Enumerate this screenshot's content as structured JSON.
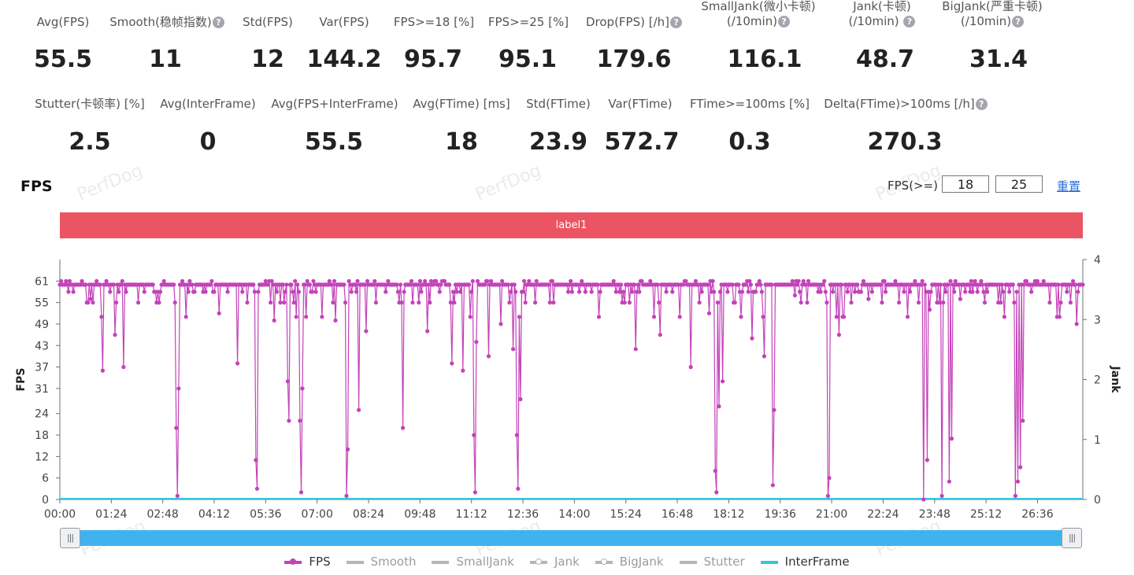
{
  "stats_row1": [
    {
      "label": "Avg(FPS)",
      "value": "55.5",
      "help": false
    },
    {
      "label": "Smooth(稳帧指数)",
      "value": "11",
      "help": true
    },
    {
      "label": "Std(FPS)",
      "value": "12",
      "help": false
    },
    {
      "label": "Var(FPS)",
      "value": "144.2",
      "help": false
    },
    {
      "label": "FPS>=18 [%]",
      "value": "95.7",
      "help": false
    },
    {
      "label": "FPS>=25 [%]",
      "value": "95.1",
      "help": false
    },
    {
      "label": "Drop(FPS) [/h]",
      "value": "179.6",
      "help": true
    },
    {
      "label": "SmallJank(微小卡顿)",
      "label2": "(/10min)",
      "value": "116.1",
      "help": true
    },
    {
      "label": "Jank(卡顿)",
      "label2": "(/10min)",
      "value": "48.7",
      "help": true
    },
    {
      "label": "BigJank(严重卡顿)",
      "label2": "(/10min)",
      "value": "31.4",
      "help": true
    }
  ],
  "stats_row2": [
    {
      "label": "Stutter(卡顿率) [%]",
      "value": "2.5",
      "help": false
    },
    {
      "label": "Avg(InterFrame)",
      "value": "0",
      "help": false
    },
    {
      "label": "Avg(FPS+InterFrame)",
      "value": "55.5",
      "help": false
    },
    {
      "label": "Avg(FTime) [ms]",
      "value": "18",
      "help": false
    },
    {
      "label": "Std(FTime)",
      "value": "23.9",
      "help": false
    },
    {
      "label": "Var(FTime)",
      "value": "572.7",
      "help": false
    },
    {
      "label": "FTime>=100ms [%]",
      "value": "0.3",
      "help": false
    },
    {
      "label": "Delta(FTime)>100ms [/h]",
      "value": "270.3",
      "help": true
    }
  ],
  "help_glyph": "?",
  "watermark": "PerfDog",
  "chart_section": {
    "title": "FPS",
    "filter_label": "FPS(>=)",
    "threshold_low": "18",
    "threshold_high": "25",
    "reset_label": "重置",
    "label_bar": "label1"
  },
  "slider": {
    "handle_glyph": "|||"
  },
  "colors": {
    "fps": "#c343b9",
    "inactive": "#b4b6bd",
    "interframe": "#35c6dd",
    "label_bar": "#eb5563",
    "slider": "#40b3ee"
  },
  "chart_data": {
    "type": "line",
    "xlabel": "",
    "ylabel": "FPS",
    "y2label": "Jank",
    "x_ticks": [
      "00:00",
      "01:24",
      "02:48",
      "04:12",
      "05:36",
      "07:00",
      "08:24",
      "09:48",
      "11:12",
      "12:36",
      "14:00",
      "15:24",
      "16:48",
      "18:12",
      "19:36",
      "21:00",
      "22:24",
      "23:48",
      "25:12",
      "26:36"
    ],
    "x_tick_seconds": [
      0,
      84,
      168,
      252,
      336,
      420,
      504,
      588,
      672,
      756,
      840,
      924,
      1008,
      1092,
      1176,
      1260,
      1344,
      1428,
      1512,
      1596
    ],
    "x_range_seconds": [
      0,
      1670
    ],
    "y_ticks": [
      0,
      6,
      12,
      18,
      24,
      31,
      37,
      43,
      49,
      55,
      61
    ],
    "ylim": [
      0,
      67
    ],
    "y2_ticks": [
      0,
      1,
      2,
      3,
      4
    ],
    "y2lim": [
      0,
      4
    ],
    "baseline_fps": 60,
    "dips": [
      {
        "t": 50,
        "fps": 56
      },
      {
        "t": 70,
        "fps": 36
      },
      {
        "t": 90,
        "fps": 46
      },
      {
        "t": 104,
        "fps": 37
      },
      {
        "t": 160,
        "fps": 58
      },
      {
        "t": 190,
        "fps": 20
      },
      {
        "t": 192,
        "fps": 1
      },
      {
        "t": 194,
        "fps": 31
      },
      {
        "t": 260,
        "fps": 52
      },
      {
        "t": 290,
        "fps": 38
      },
      {
        "t": 305,
        "fps": 44
      },
      {
        "t": 320,
        "fps": 11
      },
      {
        "t": 322,
        "fps": 3
      },
      {
        "t": 324,
        "fps": 58
      },
      {
        "t": 350,
        "fps": 50
      },
      {
        "t": 372,
        "fps": 33
      },
      {
        "t": 374,
        "fps": 22
      },
      {
        "t": 392,
        "fps": 22
      },
      {
        "t": 394,
        "fps": 2
      },
      {
        "t": 396,
        "fps": 31
      },
      {
        "t": 450,
        "fps": 50
      },
      {
        "t": 468,
        "fps": 1
      },
      {
        "t": 470,
        "fps": 14
      },
      {
        "t": 488,
        "fps": 25
      },
      {
        "t": 500,
        "fps": 47
      },
      {
        "t": 560,
        "fps": 20
      },
      {
        "t": 600,
        "fps": 47
      },
      {
        "t": 640,
        "fps": 38
      },
      {
        "t": 658,
        "fps": 36
      },
      {
        "t": 676,
        "fps": 18
      },
      {
        "t": 678,
        "fps": 2
      },
      {
        "t": 680,
        "fps": 44
      },
      {
        "t": 700,
        "fps": 40
      },
      {
        "t": 720,
        "fps": 49
      },
      {
        "t": 740,
        "fps": 42
      },
      {
        "t": 746,
        "fps": 18
      },
      {
        "t": 748,
        "fps": 3
      },
      {
        "t": 752,
        "fps": 28
      },
      {
        "t": 800,
        "fps": 55
      },
      {
        "t": 880,
        "fps": 51
      },
      {
        "t": 940,
        "fps": 42
      },
      {
        "t": 980,
        "fps": 46
      },
      {
        "t": 1030,
        "fps": 37
      },
      {
        "t": 1060,
        "fps": 52
      },
      {
        "t": 1070,
        "fps": 8
      },
      {
        "t": 1072,
        "fps": 2
      },
      {
        "t": 1076,
        "fps": 26
      },
      {
        "t": 1082,
        "fps": 33
      },
      {
        "t": 1130,
        "fps": 45
      },
      {
        "t": 1150,
        "fps": 40
      },
      {
        "t": 1164,
        "fps": 4
      },
      {
        "t": 1166,
        "fps": 25
      },
      {
        "t": 1200,
        "fps": 57
      },
      {
        "t": 1254,
        "fps": 1
      },
      {
        "t": 1256,
        "fps": 6
      },
      {
        "t": 1272,
        "fps": 46
      },
      {
        "t": 1320,
        "fps": 56
      },
      {
        "t": 1410,
        "fps": 0
      },
      {
        "t": 1413,
        "fps": 2
      },
      {
        "t": 1416,
        "fps": 11
      },
      {
        "t": 1420,
        "fps": 53
      },
      {
        "t": 1440,
        "fps": 1
      },
      {
        "t": 1452,
        "fps": 5
      },
      {
        "t": 1456,
        "fps": 17
      },
      {
        "t": 1470,
        "fps": 56
      },
      {
        "t": 1560,
        "fps": 1
      },
      {
        "t": 1564,
        "fps": 5
      },
      {
        "t": 1568,
        "fps": 9
      },
      {
        "t": 1572,
        "fps": 22
      },
      {
        "t": 1660,
        "fps": 49
      },
      {
        "t": 1663,
        "fps": 52
      }
    ]
  },
  "legend": [
    {
      "name": "FPS",
      "style": "dot-line",
      "active": true,
      "color": "#c343b9"
    },
    {
      "name": "Smooth",
      "style": "line",
      "active": false,
      "color": "#b4b6bd"
    },
    {
      "name": "SmallJank",
      "style": "line",
      "active": false,
      "color": "#b4b6bd"
    },
    {
      "name": "Jank",
      "style": "dot-line",
      "active": false,
      "color": "#b4b6bd"
    },
    {
      "name": "BigJank",
      "style": "dot-line",
      "active": false,
      "color": "#b4b6bd"
    },
    {
      "name": "Stutter",
      "style": "line",
      "active": false,
      "color": "#b4b6bd"
    },
    {
      "name": "InterFrame",
      "style": "line",
      "active": true,
      "color": "#35c6dd"
    }
  ]
}
